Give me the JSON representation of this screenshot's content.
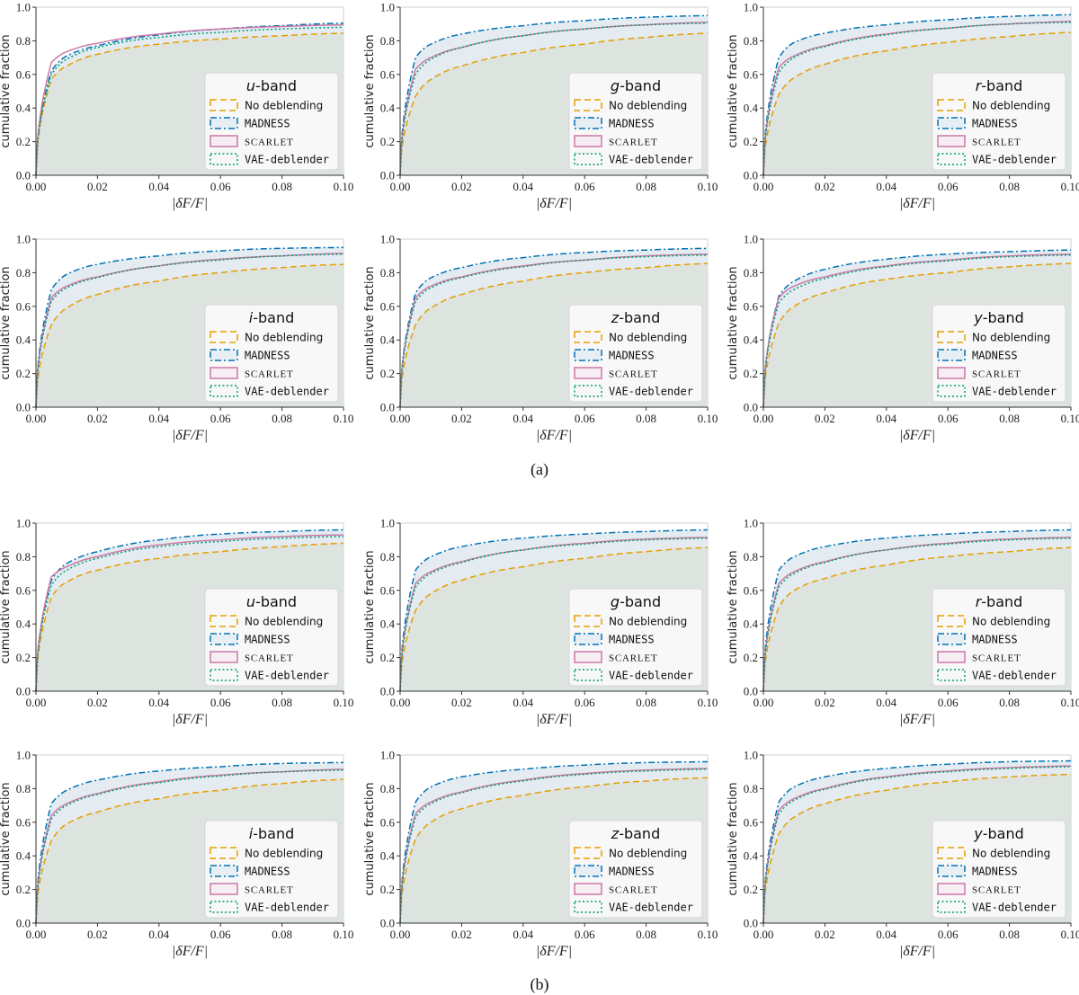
{
  "figure": {
    "caption_a": "(a)",
    "caption_b": "(b)"
  },
  "chart_data": {
    "type": "line",
    "x_label": "|δF/F|",
    "y_label": "cumulative fraction",
    "xlim": [
      0,
      0.1
    ],
    "ylim": [
      0,
      1.0
    ],
    "x_ticks": [
      "0.00",
      "0.02",
      "0.04",
      "0.06",
      "0.08",
      "0.10"
    ],
    "y_ticks": [
      "0.0",
      "0.2",
      "0.4",
      "0.6",
      "0.8",
      "1.0"
    ],
    "legend_placement": "lower right",
    "legend_entries": [
      "No deblending",
      "MADNESS",
      "SCARLET",
      "VAE-deblender"
    ],
    "series_styles": [
      {
        "name": "No deblending",
        "color": "#e69f00",
        "dash": "dashed"
      },
      {
        "name": "MADNESS",
        "color": "#0072b2",
        "dash": "dashdot"
      },
      {
        "name": "SCARLET",
        "color": "#cc79a7",
        "dash": "solid"
      },
      {
        "name": "VAE-deblender",
        "color": "#009e73",
        "dash": "dotted"
      }
    ],
    "x_samples": [
      0.0,
      0.005,
      0.01,
      0.02,
      0.04,
      0.06,
      0.08,
      0.1
    ],
    "panels": [
      {
        "group": "a",
        "band": "u",
        "series": [
          {
            "name": "No deblending",
            "values": [
              0.0,
              0.57,
              0.65,
              0.72,
              0.78,
              0.81,
              0.83,
              0.845
            ]
          },
          {
            "name": "MADNESS",
            "values": [
              0.0,
              0.62,
              0.71,
              0.77,
              0.835,
              0.87,
              0.89,
              0.905
            ]
          },
          {
            "name": "SCARLET",
            "values": [
              0.0,
              0.67,
              0.735,
              0.785,
              0.84,
              0.87,
              0.885,
              0.895
            ]
          },
          {
            "name": "VAE-deblender",
            "values": [
              0.0,
              0.6,
              0.69,
              0.76,
              0.82,
              0.85,
              0.87,
              0.88
            ]
          }
        ]
      },
      {
        "group": "a",
        "band": "g",
        "series": [
          {
            "name": "No deblending",
            "values": [
              0.0,
              0.47,
              0.57,
              0.65,
              0.73,
              0.78,
              0.82,
              0.845
            ]
          },
          {
            "name": "MADNESS",
            "values": [
              0.0,
              0.7,
              0.78,
              0.84,
              0.89,
              0.92,
              0.94,
              0.95
            ]
          },
          {
            "name": "SCARLET",
            "values": [
              0.0,
              0.63,
              0.7,
              0.76,
              0.83,
              0.87,
              0.895,
              0.91
            ]
          },
          {
            "name": "VAE-deblender",
            "values": [
              0.0,
              0.6,
              0.69,
              0.76,
              0.83,
              0.87,
              0.895,
              0.905
            ]
          }
        ]
      },
      {
        "group": "a",
        "band": "r",
        "series": [
          {
            "name": "No deblending",
            "values": [
              0.0,
              0.48,
              0.58,
              0.66,
              0.74,
              0.79,
              0.825,
              0.85
            ]
          },
          {
            "name": "MADNESS",
            "values": [
              0.0,
              0.7,
              0.79,
              0.845,
              0.895,
              0.925,
              0.945,
              0.955
            ]
          },
          {
            "name": "SCARLET",
            "values": [
              0.0,
              0.64,
              0.71,
              0.77,
              0.84,
              0.875,
              0.9,
              0.915
            ]
          },
          {
            "name": "VAE-deblender",
            "values": [
              0.0,
              0.61,
              0.7,
              0.765,
              0.835,
              0.875,
              0.9,
              0.91
            ]
          }
        ]
      },
      {
        "group": "a",
        "band": "i",
        "series": [
          {
            "name": "No deblending",
            "values": [
              0.0,
              0.49,
              0.59,
              0.67,
              0.75,
              0.8,
              0.83,
              0.85
            ]
          },
          {
            "name": "MADNESS",
            "values": [
              0.0,
              0.7,
              0.79,
              0.85,
              0.9,
              0.93,
              0.945,
              0.95
            ]
          },
          {
            "name": "SCARLET",
            "values": [
              0.0,
              0.65,
              0.72,
              0.775,
              0.84,
              0.88,
              0.9,
              0.915
            ]
          },
          {
            "name": "VAE-deblender",
            "values": [
              0.0,
              0.63,
              0.71,
              0.77,
              0.84,
              0.875,
              0.9,
              0.91
            ]
          }
        ]
      },
      {
        "group": "a",
        "band": "z",
        "series": [
          {
            "name": "No deblending",
            "values": [
              0.0,
              0.49,
              0.59,
              0.67,
              0.75,
              0.8,
              0.83,
              0.855
            ]
          },
          {
            "name": "MADNESS",
            "values": [
              0.0,
              0.68,
              0.77,
              0.83,
              0.89,
              0.92,
              0.935,
              0.945
            ]
          },
          {
            "name": "SCARLET",
            "values": [
              0.0,
              0.65,
              0.72,
              0.775,
              0.84,
              0.875,
              0.9,
              0.91
            ]
          },
          {
            "name": "VAE-deblender",
            "values": [
              0.0,
              0.63,
              0.71,
              0.77,
              0.835,
              0.875,
              0.895,
              0.905
            ]
          }
        ]
      },
      {
        "group": "a",
        "band": "y",
        "series": [
          {
            "name": "No deblending",
            "values": [
              0.0,
              0.5,
              0.6,
              0.68,
              0.76,
              0.8,
              0.835,
              0.855
            ]
          },
          {
            "name": "MADNESS",
            "values": [
              0.0,
              0.66,
              0.75,
              0.82,
              0.88,
              0.91,
              0.925,
              0.935
            ]
          },
          {
            "name": "SCARLET",
            "values": [
              0.0,
              0.65,
              0.72,
              0.775,
              0.84,
              0.875,
              0.9,
              0.91
            ]
          },
          {
            "name": "VAE-deblender",
            "values": [
              0.0,
              0.62,
              0.7,
              0.765,
              0.835,
              0.87,
              0.895,
              0.905
            ]
          }
        ]
      },
      {
        "group": "b",
        "band": "u",
        "series": [
          {
            "name": "No deblending",
            "values": [
              0.0,
              0.56,
              0.65,
              0.72,
              0.79,
              0.83,
              0.86,
              0.88
            ]
          },
          {
            "name": "MADNESS",
            "values": [
              0.0,
              0.66,
              0.76,
              0.83,
              0.9,
              0.935,
              0.95,
              0.96
            ]
          },
          {
            "name": "SCARLET",
            "values": [
              0.0,
              0.68,
              0.74,
              0.8,
              0.87,
              0.9,
              0.92,
              0.93
            ]
          },
          {
            "name": "VAE-deblender",
            "values": [
              0.0,
              0.63,
              0.72,
              0.79,
              0.86,
              0.89,
              0.91,
              0.92
            ]
          }
        ]
      },
      {
        "group": "b",
        "band": "g",
        "series": [
          {
            "name": "No deblending",
            "values": [
              0.0,
              0.48,
              0.58,
              0.66,
              0.74,
              0.79,
              0.83,
              0.855
            ]
          },
          {
            "name": "MADNESS",
            "values": [
              0.0,
              0.72,
              0.8,
              0.86,
              0.91,
              0.935,
              0.95,
              0.96
            ]
          },
          {
            "name": "SCARLET",
            "values": [
              0.0,
              0.64,
              0.71,
              0.77,
              0.84,
              0.88,
              0.905,
              0.915
            ]
          },
          {
            "name": "VAE-deblender",
            "values": [
              0.0,
              0.62,
              0.7,
              0.765,
              0.84,
              0.875,
              0.9,
              0.91
            ]
          }
        ]
      },
      {
        "group": "b",
        "band": "r",
        "series": [
          {
            "name": "No deblending",
            "values": [
              0.0,
              0.5,
              0.6,
              0.67,
              0.75,
              0.8,
              0.83,
              0.855
            ]
          },
          {
            "name": "MADNESS",
            "values": [
              0.0,
              0.72,
              0.8,
              0.86,
              0.91,
              0.935,
              0.95,
              0.96
            ]
          },
          {
            "name": "SCARLET",
            "values": [
              0.0,
              0.64,
              0.71,
              0.77,
              0.84,
              0.88,
              0.905,
              0.915
            ]
          },
          {
            "name": "VAE-deblender",
            "values": [
              0.0,
              0.62,
              0.7,
              0.765,
              0.84,
              0.875,
              0.9,
              0.91
            ]
          }
        ]
      },
      {
        "group": "b",
        "band": "i",
        "series": [
          {
            "name": "No deblending",
            "values": [
              0.0,
              0.49,
              0.59,
              0.66,
              0.74,
              0.79,
              0.83,
              0.855
            ]
          },
          {
            "name": "MADNESS",
            "values": [
              0.0,
              0.71,
              0.79,
              0.85,
              0.905,
              0.93,
              0.95,
              0.955
            ]
          },
          {
            "name": "SCARLET",
            "values": [
              0.0,
              0.64,
              0.71,
              0.77,
              0.84,
              0.88,
              0.9,
              0.915
            ]
          },
          {
            "name": "VAE-deblender",
            "values": [
              0.0,
              0.62,
              0.7,
              0.765,
              0.835,
              0.875,
              0.9,
              0.91
            ]
          }
        ]
      },
      {
        "group": "b",
        "band": "z",
        "series": [
          {
            "name": "No deblending",
            "values": [
              0.0,
              0.5,
              0.6,
              0.68,
              0.76,
              0.81,
              0.845,
              0.865
            ]
          },
          {
            "name": "MADNESS",
            "values": [
              0.0,
              0.72,
              0.81,
              0.87,
              0.915,
              0.94,
              0.955,
              0.96
            ]
          },
          {
            "name": "SCARLET",
            "values": [
              0.0,
              0.65,
              0.72,
              0.78,
              0.85,
              0.89,
              0.91,
              0.92
            ]
          },
          {
            "name": "VAE-deblender",
            "values": [
              0.0,
              0.63,
              0.71,
              0.775,
              0.845,
              0.885,
              0.905,
              0.915
            ]
          }
        ]
      },
      {
        "group": "b",
        "band": "y",
        "series": [
          {
            "name": "No deblending",
            "values": [
              0.0,
              0.53,
              0.63,
              0.71,
              0.79,
              0.84,
              0.87,
              0.885
            ]
          },
          {
            "name": "MADNESS",
            "values": [
              0.0,
              0.72,
              0.81,
              0.87,
              0.92,
              0.945,
              0.96,
              0.965
            ]
          },
          {
            "name": "SCARLET",
            "values": [
              0.0,
              0.67,
              0.74,
              0.8,
              0.87,
              0.905,
              0.925,
              0.935
            ]
          },
          {
            "name": "VAE-deblender",
            "values": [
              0.0,
              0.65,
              0.73,
              0.795,
              0.865,
              0.9,
              0.92,
              0.93
            ]
          }
        ]
      }
    ]
  }
}
